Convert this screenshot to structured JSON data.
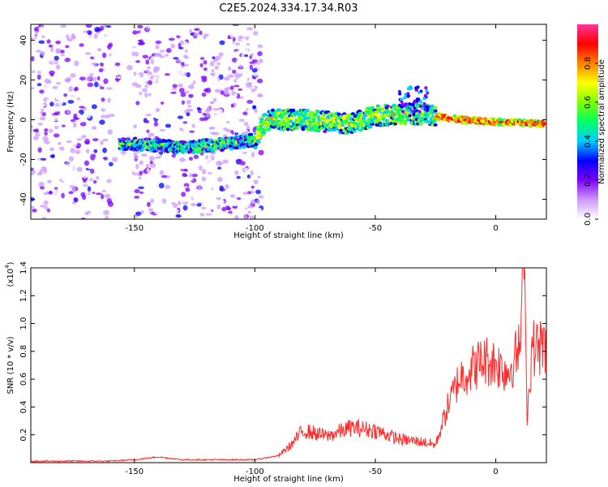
{
  "title": "C2E5.2024.334.17.34.R03",
  "chart_data": [
    {
      "type": "heatmap",
      "xlabel": "Height of straight line (km)",
      "ylabel": "Frequency (Hz)",
      "xlim": [
        -193,
        21
      ],
      "ylim": [
        -50,
        48
      ],
      "xticks": [
        "-150",
        "-100",
        "-50",
        "0"
      ],
      "yticks": [
        "-40",
        "-20",
        "0",
        "20",
        "40"
      ],
      "colorbar": {
        "label": "Normalized spectral amplitude",
        "range": [
          0,
          1
        ],
        "ticks": [
          "0.0",
          "0.2",
          "0.4",
          "0.6",
          "0.8"
        ],
        "colors": [
          "#ffffff",
          "#cc99ff",
          "#8000ff",
          "#0000ff",
          "#00ccff",
          "#00ff66",
          "#80ff00",
          "#ffff00",
          "#ff8000",
          "#ff0000",
          "#ff3399"
        ]
      },
      "ridge": [
        {
          "x": -155,
          "y": -12
        },
        {
          "x": -140,
          "y": -13
        },
        {
          "x": -130,
          "y": -14
        },
        {
          "x": -110,
          "y": -12
        },
        {
          "x": -100,
          "y": -10
        },
        {
          "x": -95,
          "y": 0
        },
        {
          "x": -80,
          "y": 0
        },
        {
          "x": -60,
          "y": -2
        },
        {
          "x": -50,
          "y": 2
        },
        {
          "x": -35,
          "y": 3
        },
        {
          "x": -25,
          "y": 2
        },
        {
          "x": -15,
          "y": 0
        },
        {
          "x": 0,
          "y": -1
        },
        {
          "x": 20,
          "y": -2
        }
      ],
      "noise_region_x": [
        -193,
        -97
      ],
      "grid": false
    },
    {
      "type": "line",
      "xlabel": "Height of straight line (km)",
      "ylabel": "SNR (10 * v/v)",
      "multiplier_label": "(x10",
      "multiplier_exp": "4",
      "xlim": [
        -193,
        21
      ],
      "ylim": [
        0,
        1.4
      ],
      "xticks": [
        "-150",
        "-100",
        "-50",
        "0"
      ],
      "yticks": [
        "0.2",
        "0.4",
        "0.6",
        "0.8",
        "1.0",
        "1.2",
        "1.4"
      ],
      "series": [
        {
          "color": "#ff2a2a",
          "points": [
            {
              "x": -193,
              "y": 0.01
            },
            {
              "x": -160,
              "y": 0.01
            },
            {
              "x": -150,
              "y": 0.02
            },
            {
              "x": -140,
              "y": 0.04
            },
            {
              "x": -130,
              "y": 0.02
            },
            {
              "x": -110,
              "y": 0.02
            },
            {
              "x": -100,
              "y": 0.02
            },
            {
              "x": -90,
              "y": 0.05
            },
            {
              "x": -85,
              "y": 0.12
            },
            {
              "x": -80,
              "y": 0.22
            },
            {
              "x": -70,
              "y": 0.18
            },
            {
              "x": -60,
              "y": 0.24
            },
            {
              "x": -50,
              "y": 0.22
            },
            {
              "x": -40,
              "y": 0.16
            },
            {
              "x": -30,
              "y": 0.14
            },
            {
              "x": -25,
              "y": 0.12
            },
            {
              "x": -20,
              "y": 0.38
            },
            {
              "x": -15,
              "y": 0.58
            },
            {
              "x": -10,
              "y": 0.64
            },
            {
              "x": -5,
              "y": 0.7
            },
            {
              "x": 0,
              "y": 0.68
            },
            {
              "x": 5,
              "y": 0.62
            },
            {
              "x": 10,
              "y": 0.78
            },
            {
              "x": 12,
              "y": 1.4
            },
            {
              "x": 13,
              "y": 0.3
            },
            {
              "x": 15,
              "y": 0.78
            },
            {
              "x": 21,
              "y": 0.8
            }
          ]
        }
      ],
      "grid": false
    }
  ]
}
